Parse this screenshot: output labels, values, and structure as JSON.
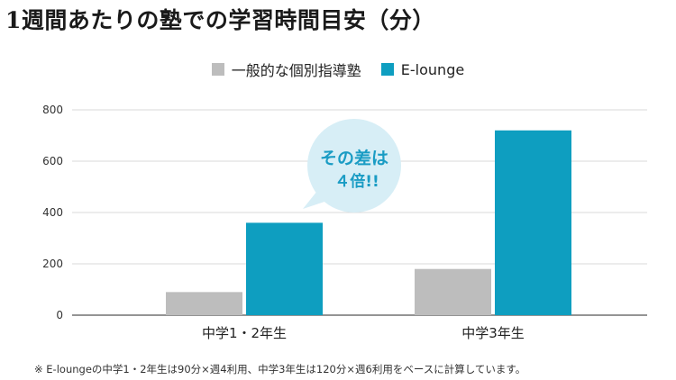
{
  "title": "1週間あたりの塾での学習時間目安（分）",
  "callout": {
    "line1": "その差は",
    "line2": "４倍!!"
  },
  "footnote": "※ E-loungeの中学1・2年生は90分×週4利用、中学3年生は120分×週6利用をベースに計算しています。",
  "colors": {
    "general": "#bdbdbd",
    "elounge": "#0e9ec0",
    "callout_bg": "#d7eef6",
    "callout_text": "#1a9cc4",
    "grid": "#d9d9d9",
    "axis": "#555555"
  },
  "chart_data": {
    "type": "bar",
    "title": "1週間あたりの塾での学習時間目安（分）",
    "categories": [
      "中学1・2年生",
      "中学3年生"
    ],
    "series": [
      {
        "name": "一般的な個別指導塾",
        "values": [
          90,
          180
        ]
      },
      {
        "name": "E-lounge",
        "values": [
          360,
          720
        ]
      }
    ],
    "yticks": [
      0,
      200,
      400,
      600,
      800
    ],
    "ylim": [
      0,
      800
    ],
    "xlabel": "",
    "ylabel": "",
    "grid": true,
    "legend": "top-center"
  }
}
